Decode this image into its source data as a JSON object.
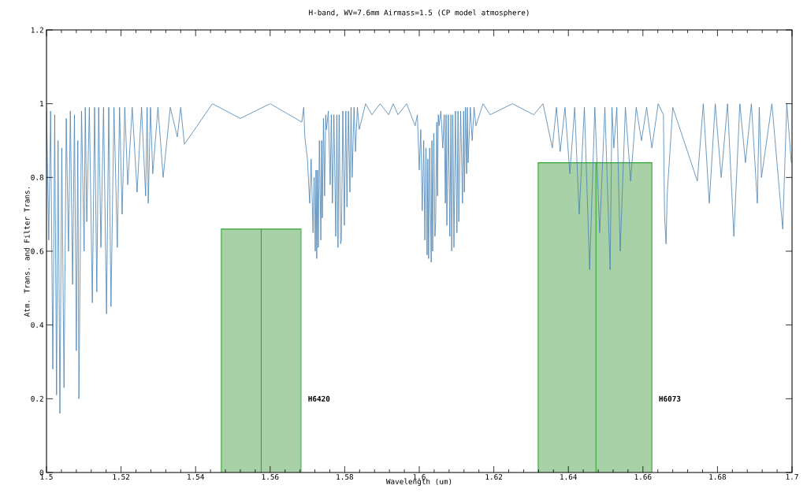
{
  "chart_data": {
    "type": "line",
    "title": "H-band, WV=7.6mm  Airmass=1.5 (CP model atmosphere)",
    "xlabel": "Wavelength (um)",
    "ylabel": "Atm. Trans. and Filter Trans.",
    "xlim": [
      1.5,
      1.7
    ],
    "ylim": [
      0,
      1.2
    ],
    "xticks": [
      1.5,
      1.52,
      1.54,
      1.56,
      1.58,
      1.6,
      1.62,
      1.64,
      1.66,
      1.68,
      1.7
    ],
    "yticks": [
      0,
      0.2,
      0.4,
      0.6,
      0.8,
      1,
      1.2
    ],
    "grid": false,
    "series": [
      {
        "name": "H6420",
        "type": "area",
        "color": "#a8d1a8",
        "x": [
          1.5469,
          1.5469,
          1.5576,
          1.5576,
          1.5576,
          1.5683,
          1.5683
        ],
        "values": [
          0,
          0.66,
          0.66,
          0,
          0.66,
          0.66,
          0
        ]
      },
      {
        "name": "H6073",
        "type": "area",
        "color": "#a8d1a8",
        "x": [
          1.6319,
          1.6319,
          1.6474,
          1.6474,
          1.6474,
          1.6624,
          1.6624
        ],
        "values": [
          0,
          0.84,
          0.84,
          0,
          0.84,
          0.84,
          0
        ]
      },
      {
        "color": "#4682b4",
        "x": [
          1.5,
          1.5006,
          1.5011,
          1.5017,
          1.5022,
          1.5027,
          1.5031,
          1.5036,
          1.5041,
          1.5047,
          1.5053,
          1.5059,
          1.5064,
          1.507,
          1.5075,
          1.508,
          1.5084,
          1.5087,
          1.5094,
          1.5101,
          1.5104,
          1.5108,
          1.5115,
          1.5123,
          1.5129,
          1.5135,
          1.514,
          1.5146,
          1.5153,
          1.5161,
          1.5167,
          1.5173,
          1.5181,
          1.519,
          1.5196,
          1.5203,
          1.521,
          1.5218,
          1.523,
          1.5243,
          1.5255,
          1.5266,
          1.527,
          1.5273,
          1.5279,
          1.5285,
          1.5299,
          1.5313,
          1.5332,
          1.5351,
          1.536,
          1.537,
          1.5445,
          1.552,
          1.56,
          1.5685,
          1.569,
          1.5693,
          1.57,
          1.5706,
          1.571,
          1.5715,
          1.5718,
          1.5721,
          1.5723,
          1.5725,
          1.5727,
          1.5729,
          1.5732,
          1.5736,
          1.5738,
          1.574,
          1.5743,
          1.5746,
          1.5749,
          1.5751,
          1.5756,
          1.5761,
          1.5764,
          1.5767,
          1.5771,
          1.5776,
          1.5779,
          1.5782,
          1.5785,
          1.5789,
          1.5791,
          1.5795,
          1.5799,
          1.5803,
          1.5806,
          1.581,
          1.5814,
          1.5817,
          1.582,
          1.5825,
          1.5829,
          1.5834,
          1.5839,
          1.5856,
          1.5873,
          1.5895,
          1.5918,
          1.593,
          1.5943,
          1.5966,
          1.5989,
          1.5995,
          1.6,
          1.6004,
          1.6008,
          1.6012,
          1.6015,
          1.6018,
          1.6021,
          1.6023,
          1.6025,
          1.6028,
          1.6032,
          1.6034,
          1.6036,
          1.6039,
          1.6042,
          1.6044,
          1.6047,
          1.6049,
          1.6051,
          1.6053,
          1.6058,
          1.6063,
          1.6067,
          1.607,
          1.6072,
          1.6074,
          1.6078,
          1.6082,
          1.6085,
          1.6087,
          1.609,
          1.6093,
          1.6097,
          1.6101,
          1.6104,
          1.6106,
          1.6111,
          1.6116,
          1.6119,
          1.6121,
          1.6124,
          1.6127,
          1.6129,
          1.6131,
          1.6137,
          1.6142,
          1.6147,
          1.6152,
          1.6171,
          1.619,
          1.625,
          1.6307,
          1.6332,
          1.6357,
          1.6368,
          1.6378,
          1.6391,
          1.6404,
          1.6417,
          1.6429,
          1.6443,
          1.6457,
          1.6471,
          1.6484,
          1.6498,
          1.6512,
          1.6517,
          1.6522,
          1.653,
          1.6539,
          1.6553,
          1.6567,
          1.6582,
          1.6596,
          1.661,
          1.6624,
          1.6641,
          1.6655,
          1.6658,
          1.6662,
          1.6665,
          1.6668,
          1.667,
          1.668,
          1.6746,
          1.6762,
          1.6778,
          1.6794,
          1.681,
          1.6827,
          1.6844,
          1.686,
          1.6875,
          1.6891,
          1.6907,
          1.6912,
          1.6918,
          1.6946,
          1.6975,
          1.6986,
          1.6998
        ],
        "values": [
          0.99,
          0.63,
          0.98,
          0.28,
          0.97,
          0.21,
          0.9,
          0.16,
          0.88,
          0.23,
          0.96,
          0.6,
          0.98,
          0.51,
          0.97,
          0.33,
          0.9,
          0.2,
          0.98,
          0.6,
          0.99,
          0.68,
          0.99,
          0.46,
          0.99,
          0.49,
          0.99,
          0.61,
          0.99,
          0.43,
          0.99,
          0.45,
          0.99,
          0.61,
          0.99,
          0.7,
          0.99,
          0.78,
          0.99,
          0.76,
          0.99,
          0.75,
          0.99,
          0.73,
          0.99,
          0.81,
          0.99,
          0.8,
          0.99,
          0.91,
          0.99,
          0.89,
          1.0,
          0.96,
          1.0,
          0.95,
          0.99,
          0.91,
          0.85,
          0.73,
          0.85,
          0.65,
          0.8,
          0.6,
          0.82,
          0.58,
          0.82,
          0.61,
          0.9,
          0.63,
          0.9,
          0.69,
          0.96,
          0.75,
          0.97,
          0.93,
          0.98,
          0.78,
          0.97,
          0.73,
          0.97,
          0.64,
          0.97,
          0.61,
          0.97,
          0.62,
          0.63,
          0.98,
          0.67,
          0.98,
          0.72,
          0.98,
          0.76,
          0.99,
          0.8,
          0.99,
          0.87,
          0.99,
          0.93,
          1.0,
          0.97,
          1.0,
          0.97,
          1.0,
          0.97,
          1.0,
          0.94,
          0.97,
          0.82,
          0.93,
          0.71,
          0.9,
          0.63,
          0.88,
          0.59,
          0.85,
          0.58,
          0.88,
          0.57,
          0.9,
          0.6,
          0.92,
          0.64,
          0.68,
          0.95,
          0.75,
          0.97,
          0.94,
          0.98,
          0.88,
          0.97,
          0.73,
          0.97,
          0.67,
          0.97,
          0.64,
          0.97,
          0.6,
          0.97,
          0.61,
          0.98,
          0.65,
          0.98,
          0.68,
          0.98,
          0.73,
          0.98,
          0.76,
          0.99,
          0.81,
          0.99,
          0.84,
          0.99,
          0.9,
          0.99,
          0.94,
          1.0,
          0.97,
          1.0,
          0.97,
          1.0,
          0.88,
          0.99,
          0.87,
          0.99,
          0.81,
          0.99,
          0.7,
          0.99,
          0.55,
          0.99,
          0.65,
          0.99,
          0.55,
          0.99,
          0.88,
          0.99,
          0.6,
          0.99,
          0.79,
          0.99,
          0.9,
          0.99,
          0.88,
          1.0,
          0.97,
          0.7,
          0.62,
          0.75,
          0.8,
          0.83,
          0.99,
          0.79,
          1.0,
          0.73,
          1.0,
          0.8,
          1.0,
          0.64,
          1.0,
          0.84,
          1.0,
          0.73,
          0.99,
          0.8,
          1.0,
          0.66,
          1.0,
          0.84
        ]
      }
    ]
  }
}
